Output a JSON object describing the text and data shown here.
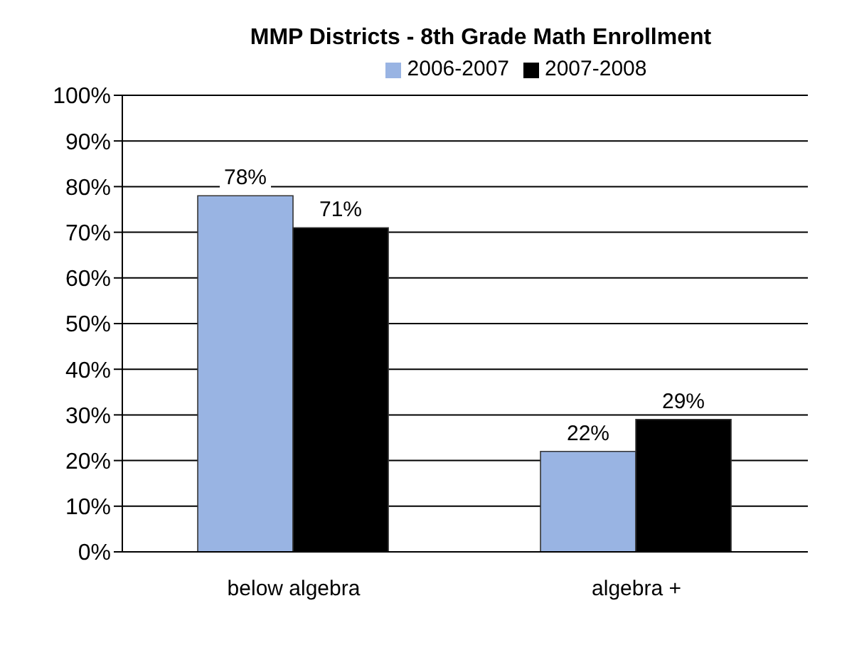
{
  "chart_data": {
    "type": "bar",
    "title": "MMP Districts - 8th Grade Math Enrollment",
    "categories": [
      "below algebra",
      "algebra +"
    ],
    "series": [
      {
        "name": "2006-2007",
        "color": "#99b4e3",
        "values": [
          78,
          22
        ],
        "value_labels": [
          "78%",
          "22%"
        ]
      },
      {
        "name": "2007-2008",
        "color": "#000000",
        "values": [
          71,
          29
        ],
        "value_labels": [
          "71%",
          "29%"
        ]
      }
    ],
    "ylim": [
      0,
      100
    ],
    "yticks": [
      {
        "value": 0,
        "label": "0%"
      },
      {
        "value": 10,
        "label": "10%"
      },
      {
        "value": 20,
        "label": "20%"
      },
      {
        "value": 30,
        "label": "30%"
      },
      {
        "value": 40,
        "label": "40%"
      },
      {
        "value": 50,
        "label": "50%"
      },
      {
        "value": 60,
        "label": "60%"
      },
      {
        "value": 70,
        "label": "70%"
      },
      {
        "value": 80,
        "label": "80%"
      },
      {
        "value": 90,
        "label": "90%"
      },
      {
        "value": 100,
        "label": "100%"
      }
    ],
    "grid": "y",
    "legend": "top"
  }
}
